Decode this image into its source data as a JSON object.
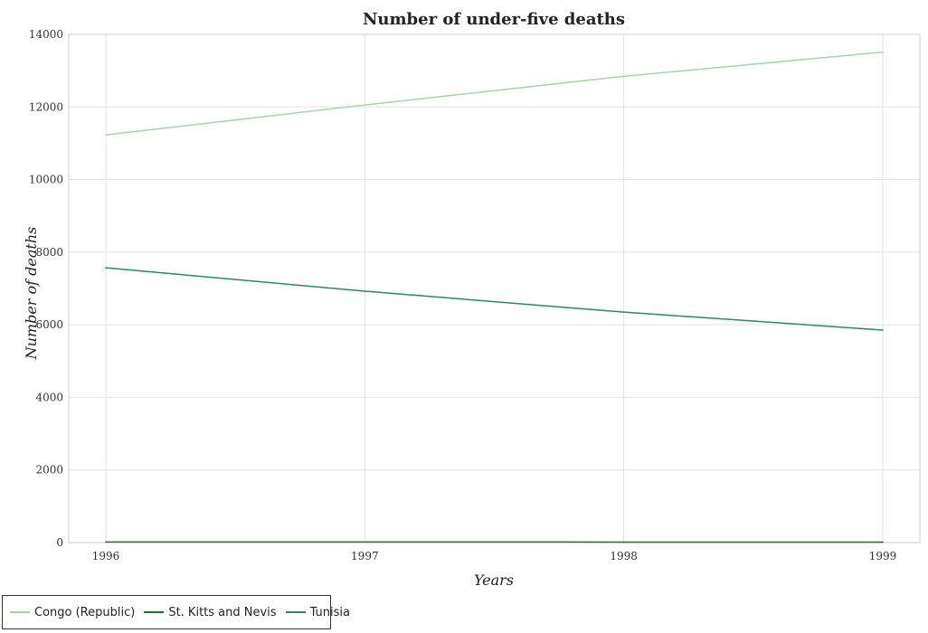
{
  "chart_data": {
    "type": "line",
    "title": "Number of under-five deaths",
    "xlabel": "Years",
    "ylabel": "Number of deaths",
    "categories": [
      "1996",
      "1997",
      "1998",
      "1999"
    ],
    "ylim": [
      0,
      14000
    ],
    "yticks": [
      0,
      2000,
      4000,
      6000,
      8000,
      10000,
      12000,
      14000
    ],
    "grid": true,
    "legend_position": "bottom-left",
    "series": [
      {
        "name": "Congo (Republic)",
        "color": "#a5d6a7",
        "values": [
          11230,
          12055,
          12845,
          13510
        ]
      },
      {
        "name": "St. Kitts and Nevis",
        "color": "#1b7a1b",
        "values": [
          16,
          15,
          14,
          13
        ]
      },
      {
        "name": "Tunisia",
        "color": "#2e8b57",
        "values": [
          7570,
          6925,
          6348,
          5855
        ]
      }
    ]
  }
}
